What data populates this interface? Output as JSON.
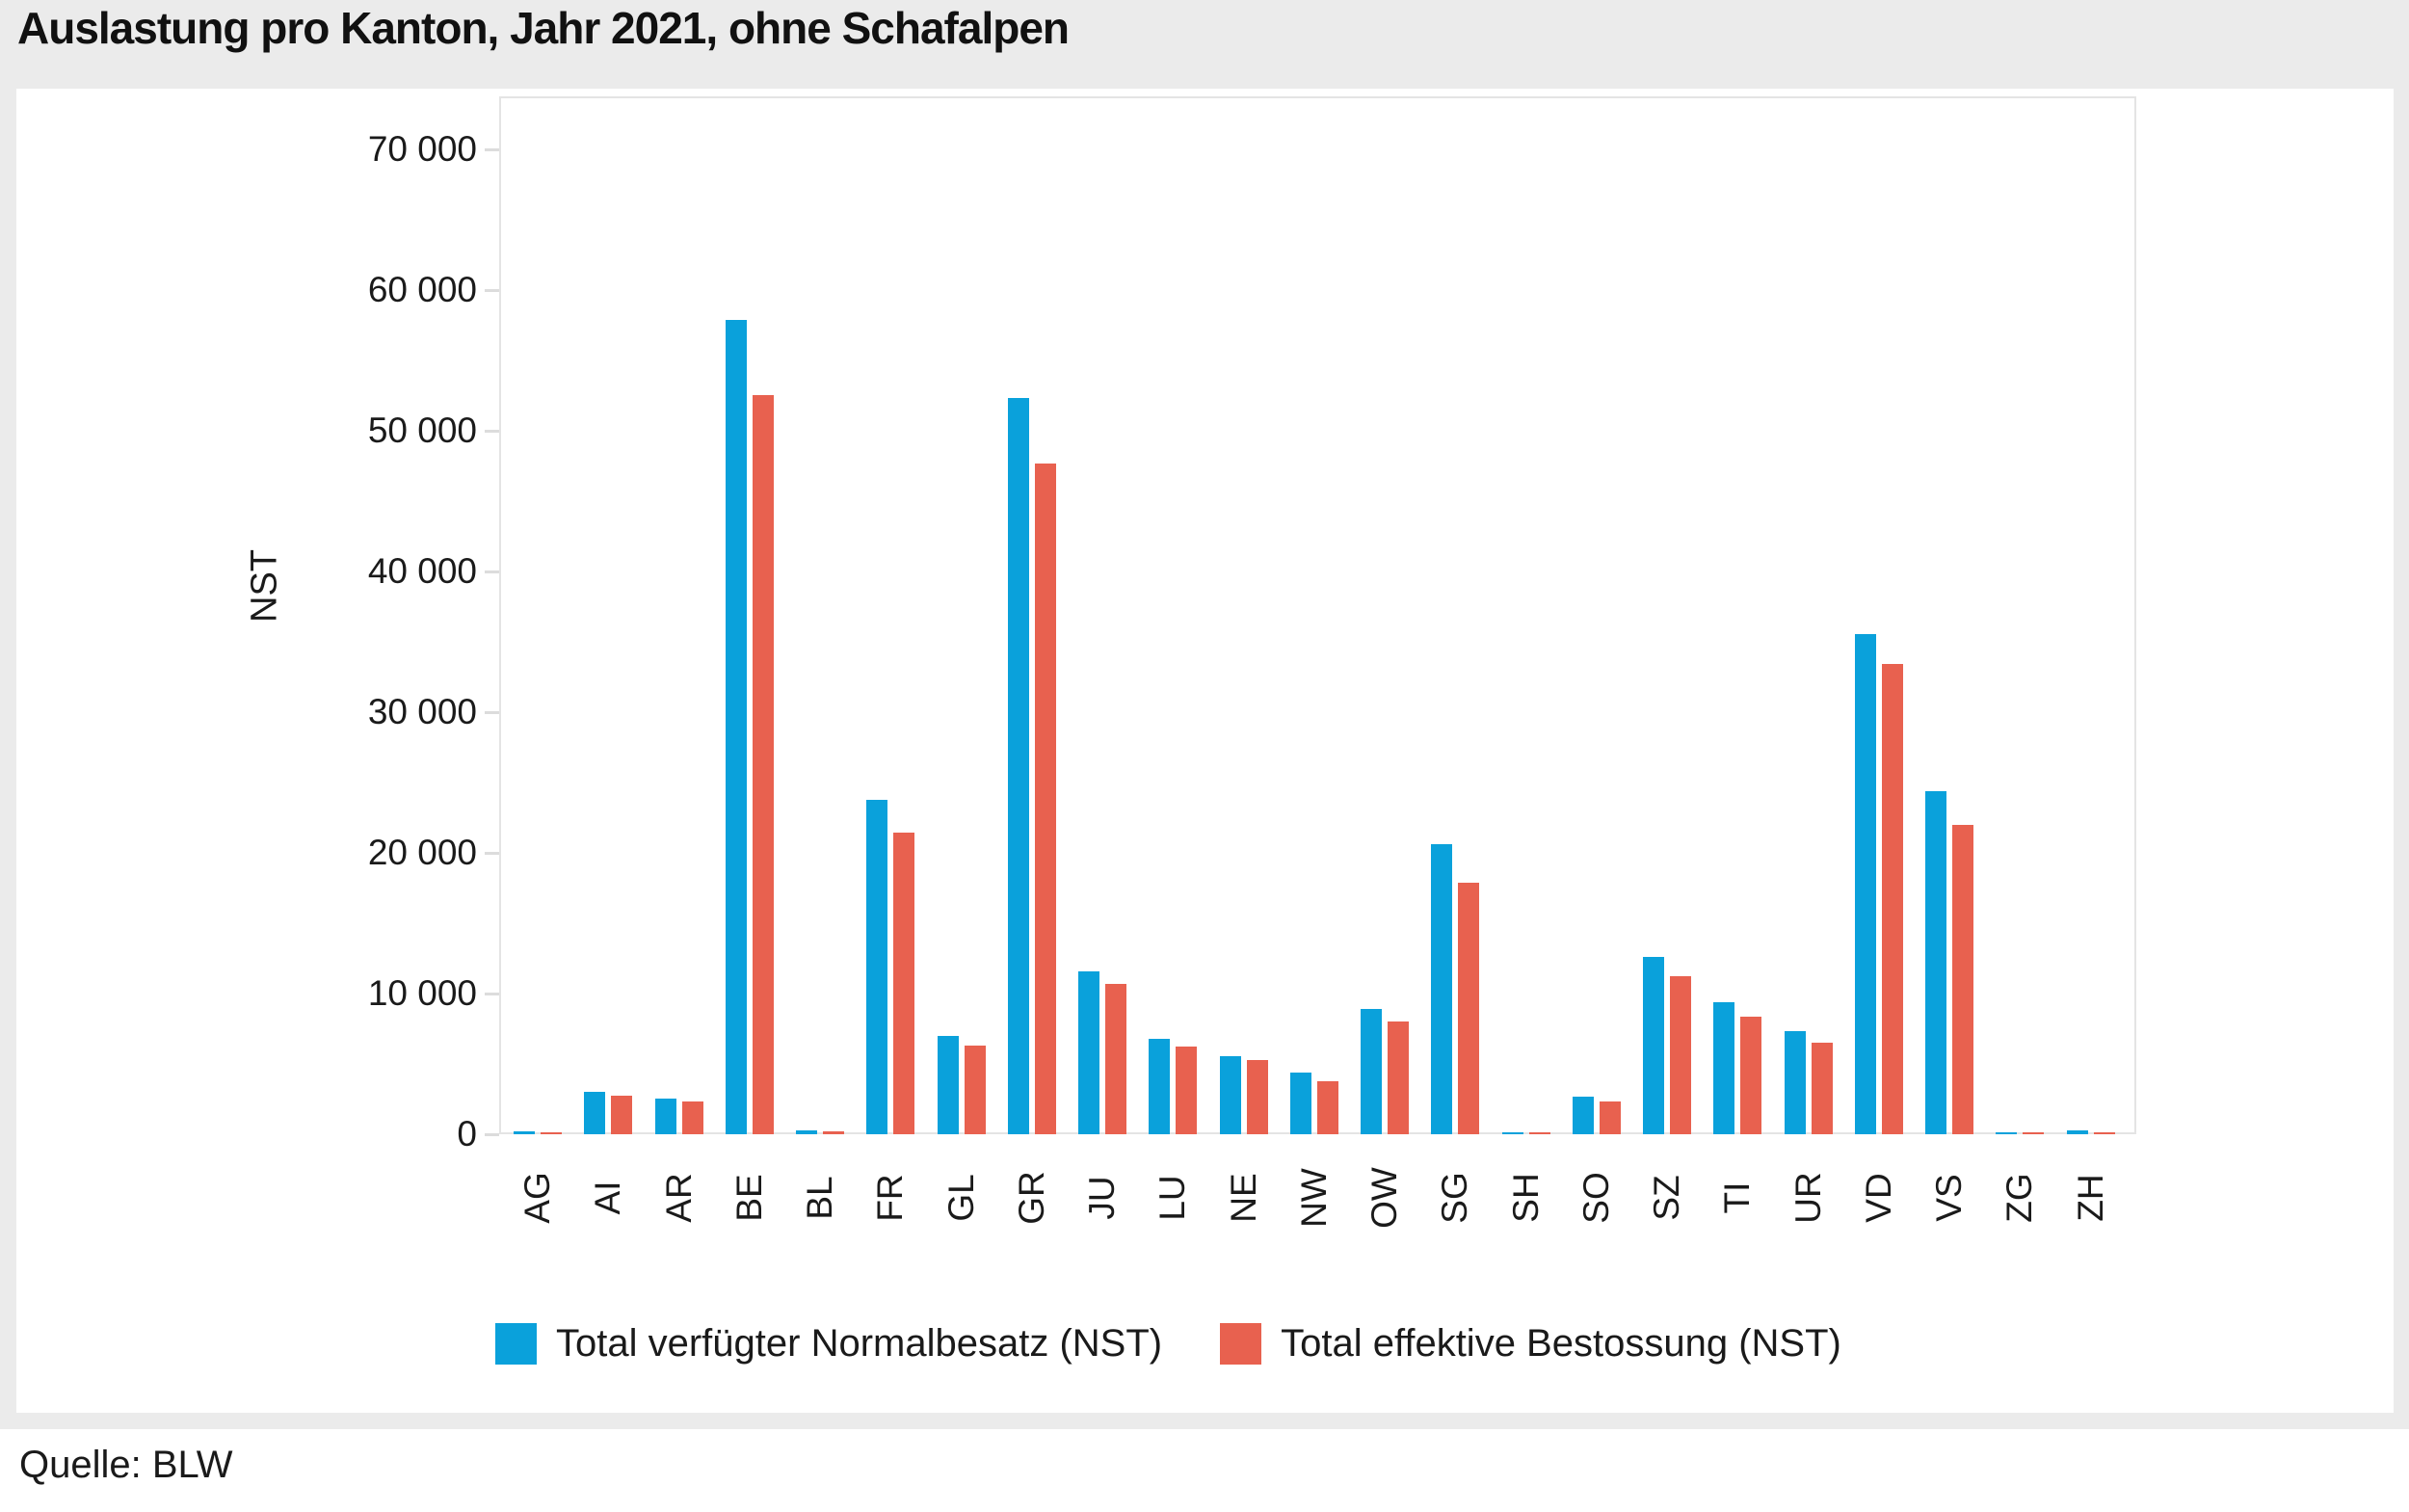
{
  "title": "Auslastung pro Kanton, Jahr 2021, ohne Schafalpen",
  "source": "Quelle: BLW",
  "colors": {
    "series1_blue": "#0aa1db",
    "series2_red": "#e8614f",
    "background": "#ebebeb",
    "panel": "#ffffff",
    "grid": "#e9e9e9",
    "text": "#1a1a1a"
  },
  "y_axis": {
    "label": "NST",
    "tick_labels": [
      "0",
      "10 000",
      "20 000",
      "30 000",
      "40 000",
      "50 000",
      "60 000",
      "70 000"
    ]
  },
  "legend": {
    "items": [
      {
        "label": "Total verfügter Normalbesatz (NST)",
        "color_key": "series1_blue"
      },
      {
        "label": "Total effektive Bestossung (NST)",
        "color_key": "series2_red"
      }
    ]
  },
  "chart_data": {
    "type": "bar",
    "title": "Auslastung pro Kanton, Jahr 2021, ohne Schafalpen",
    "xlabel": "",
    "ylabel": "NST",
    "ylim": [
      0,
      70000
    ],
    "grid": true,
    "legend_position": "bottom",
    "categories": [
      "AG",
      "AI",
      "AR",
      "BE",
      "BL",
      "FR",
      "GL",
      "GR",
      "JU",
      "LU",
      "NE",
      "NW",
      "OW",
      "SG",
      "SH",
      "SO",
      "SZ",
      "TI",
      "UR",
      "VD",
      "VS",
      "ZG",
      "ZH"
    ],
    "series": [
      {
        "name": "Total verfügter Normalbesatz (NST)",
        "color": "#0aa1db",
        "values": [
          200,
          3000,
          2550,
          57900,
          250,
          23750,
          7000,
          52300,
          11550,
          6750,
          5550,
          4400,
          8900,
          20600,
          100,
          2650,
          12600,
          9400,
          7350,
          35550,
          24400,
          100,
          300
        ]
      },
      {
        "name": "Total effektive Bestossung (NST)",
        "color": "#e8614f",
        "values": [
          150,
          2750,
          2300,
          52500,
          200,
          21450,
          6300,
          47700,
          10700,
          6200,
          5300,
          3800,
          8000,
          17900,
          70,
          2300,
          11200,
          8350,
          6500,
          33400,
          22000,
          70,
          150
        ]
      }
    ]
  }
}
